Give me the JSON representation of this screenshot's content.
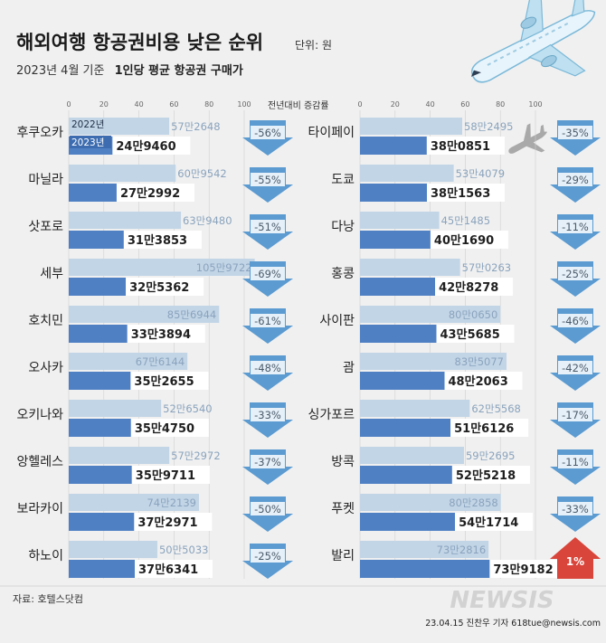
{
  "header": {
    "title": "해외여행 항공권비용 낮은 순위",
    "unit": "단위: 원",
    "subtitle_prefix": "2023년 4월 기준",
    "subtitle_bold": "1인당 평균 항공권 구매가"
  },
  "change_label": "전년대비 증감률",
  "legend": {
    "y2022": "2022년",
    "y2023": "2023년"
  },
  "source": "자료: 호텔스닷컴",
  "credit": "23.04.15 진찬우 기자 618tue@newsis.com",
  "watermark": "NEWSIS",
  "colors": {
    "bar2022": "#c2d5e6",
    "bar2023": "#4f80c4",
    "arrow_down": "#5b9bd1",
    "arrow_up": "#d9453a"
  },
  "chart_data": {
    "type": "bar",
    "orientation": "horizontal",
    "axis_ticks": [
      0,
      20,
      40,
      60,
      80,
      100
    ],
    "axis_note": "만원",
    "series_names": [
      "2022년",
      "2023년"
    ],
    "columns": [
      [
        {
          "city": "후쿠오카",
          "v2022": 572648,
          "v2023": 249460,
          "l2022": "57만2648",
          "l2023": "24만9460",
          "change": "-56%"
        },
        {
          "city": "마닐라",
          "v2022": 609542,
          "v2023": 272992,
          "l2022": "60만9542",
          "l2023": "27만2992",
          "change": "-55%"
        },
        {
          "city": "삿포로",
          "v2022": 639480,
          "v2023": 313853,
          "l2022": "63만9480",
          "l2023": "31만3853",
          "change": "-51%"
        },
        {
          "city": "세부",
          "v2022": 1059722,
          "v2023": 325362,
          "l2022": "105만9722",
          "l2023": "32만5362",
          "change": "-69%"
        },
        {
          "city": "호치민",
          "v2022": 856944,
          "v2023": 333894,
          "l2022": "85만6944",
          "l2023": "33만3894",
          "change": "-61%"
        },
        {
          "city": "오사카",
          "v2022": 676144,
          "v2023": 352655,
          "l2022": "67만6144",
          "l2023": "35만2655",
          "change": "-48%"
        },
        {
          "city": "오키나와",
          "v2022": 526540,
          "v2023": 354750,
          "l2022": "52만6540",
          "l2023": "35만4750",
          "change": "-33%"
        },
        {
          "city": "앙헬레스",
          "v2022": 572972,
          "v2023": 359711,
          "l2022": "57만2972",
          "l2023": "35만9711",
          "change": "-37%"
        },
        {
          "city": "보라카이",
          "v2022": 742139,
          "v2023": 372971,
          "l2022": "74만2139",
          "l2023": "37만2971",
          "change": "-50%"
        },
        {
          "city": "하노이",
          "v2022": 505033,
          "v2023": 376341,
          "l2022": "50만5033",
          "l2023": "37만6341",
          "change": "-25%"
        }
      ],
      [
        {
          "city": "타이페이",
          "v2022": 582495,
          "v2023": 380851,
          "l2022": "58만2495",
          "l2023": "38만0851",
          "change": "-35%"
        },
        {
          "city": "도쿄",
          "v2022": 534079,
          "v2023": 381563,
          "l2022": "53만4079",
          "l2023": "38만1563",
          "change": "-29%"
        },
        {
          "city": "다낭",
          "v2022": 451485,
          "v2023": 401690,
          "l2022": "45만1485",
          "l2023": "40만1690",
          "change": "-11%"
        },
        {
          "city": "홍콩",
          "v2022": 570263,
          "v2023": 428278,
          "l2022": "57만0263",
          "l2023": "42만8278",
          "change": "-25%"
        },
        {
          "city": "사이판",
          "v2022": 800650,
          "v2023": 435685,
          "l2022": "80만0650",
          "l2023": "43만5685",
          "change": "-46%"
        },
        {
          "city": "괌",
          "v2022": 835077,
          "v2023": 482063,
          "l2022": "83만5077",
          "l2023": "48만2063",
          "change": "-42%"
        },
        {
          "city": "싱가포르",
          "v2022": 625568,
          "v2023": 516126,
          "l2022": "62만5568",
          "l2023": "51만6126",
          "change": "-17%"
        },
        {
          "city": "방콕",
          "v2022": 592695,
          "v2023": 525218,
          "l2022": "59만2695",
          "l2023": "52만5218",
          "change": "-11%"
        },
        {
          "city": "푸켓",
          "v2022": 802858,
          "v2023": 541714,
          "l2022": "80만2858",
          "l2023": "54만1714",
          "change": "-33%"
        },
        {
          "city": "발리",
          "v2022": 732816,
          "v2023": 739182,
          "l2022": "73만2816",
          "l2023": "73만9182",
          "change": "1%"
        }
      ]
    ]
  }
}
